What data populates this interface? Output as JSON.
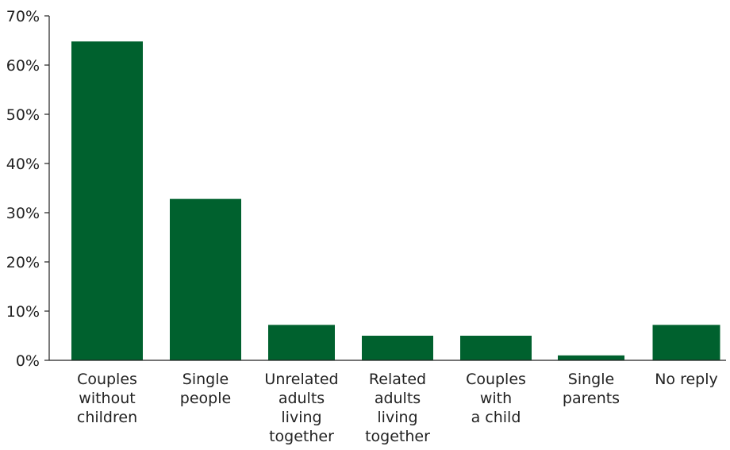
{
  "chart_data": {
    "type": "bar",
    "title": "",
    "xlabel": "",
    "ylabel": "",
    "ylim": [
      0,
      70
    ],
    "y_ticks": [
      {
        "value": 0,
        "label": "0%"
      },
      {
        "value": 10,
        "label": "10%"
      },
      {
        "value": 20,
        "label": "20%"
      },
      {
        "value": 30,
        "label": "30%"
      },
      {
        "value": 40,
        "label": "40%"
      },
      {
        "value": 50,
        "label": "50%"
      },
      {
        "value": 60,
        "label": "60%"
      },
      {
        "value": 70,
        "label": "70%"
      }
    ],
    "categories": [
      [
        "Couples",
        "without",
        "children"
      ],
      [
        "Single",
        "people"
      ],
      [
        "Unrelated",
        "adults",
        "living",
        "together"
      ],
      [
        "Related",
        "adults",
        "living",
        "together"
      ],
      [
        "Couples",
        "with",
        "a child"
      ],
      [
        "Single",
        "parents"
      ],
      [
        "No reply"
      ]
    ],
    "values": [
      64.8,
      32.8,
      7.2,
      5.0,
      5.0,
      1.0,
      7.2
    ],
    "bar_color": "#00612e",
    "grid": false,
    "legend": "none"
  }
}
